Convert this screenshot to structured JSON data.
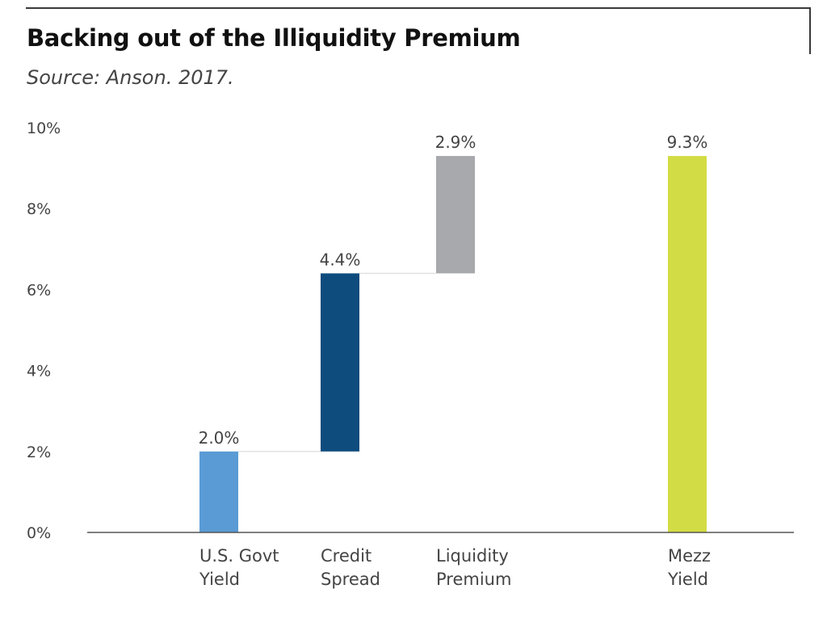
{
  "chart_data": {
    "type": "bar",
    "title": "Backing out of the Illiquidity Premium",
    "subtitle": "Source: Anson. 2017.",
    "xlabel": "",
    "ylabel": "",
    "ylim": [
      0,
      10
    ],
    "yticks": [
      "0%",
      "2%",
      "4%",
      "6%",
      "8%",
      "10%"
    ],
    "grid": false,
    "legend": "none",
    "bars": [
      {
        "category": "U.S. Govt\nYield",
        "base": 0,
        "value": 2.0,
        "label": "2.0%",
        "color": "#5a9bd5"
      },
      {
        "category": "Credit\nSpread",
        "base": 2.0,
        "value": 4.4,
        "label": "4.4%",
        "color": "#0e4c7e"
      },
      {
        "category": "Liquidity\nPremium",
        "base": 6.4,
        "value": 2.9,
        "label": "2.9%",
        "color": "#a7a9ac"
      },
      {
        "category": "Mezz\nYield",
        "base": 0,
        "value": 9.3,
        "label": "9.3%",
        "color": "#d2dc44"
      }
    ]
  }
}
